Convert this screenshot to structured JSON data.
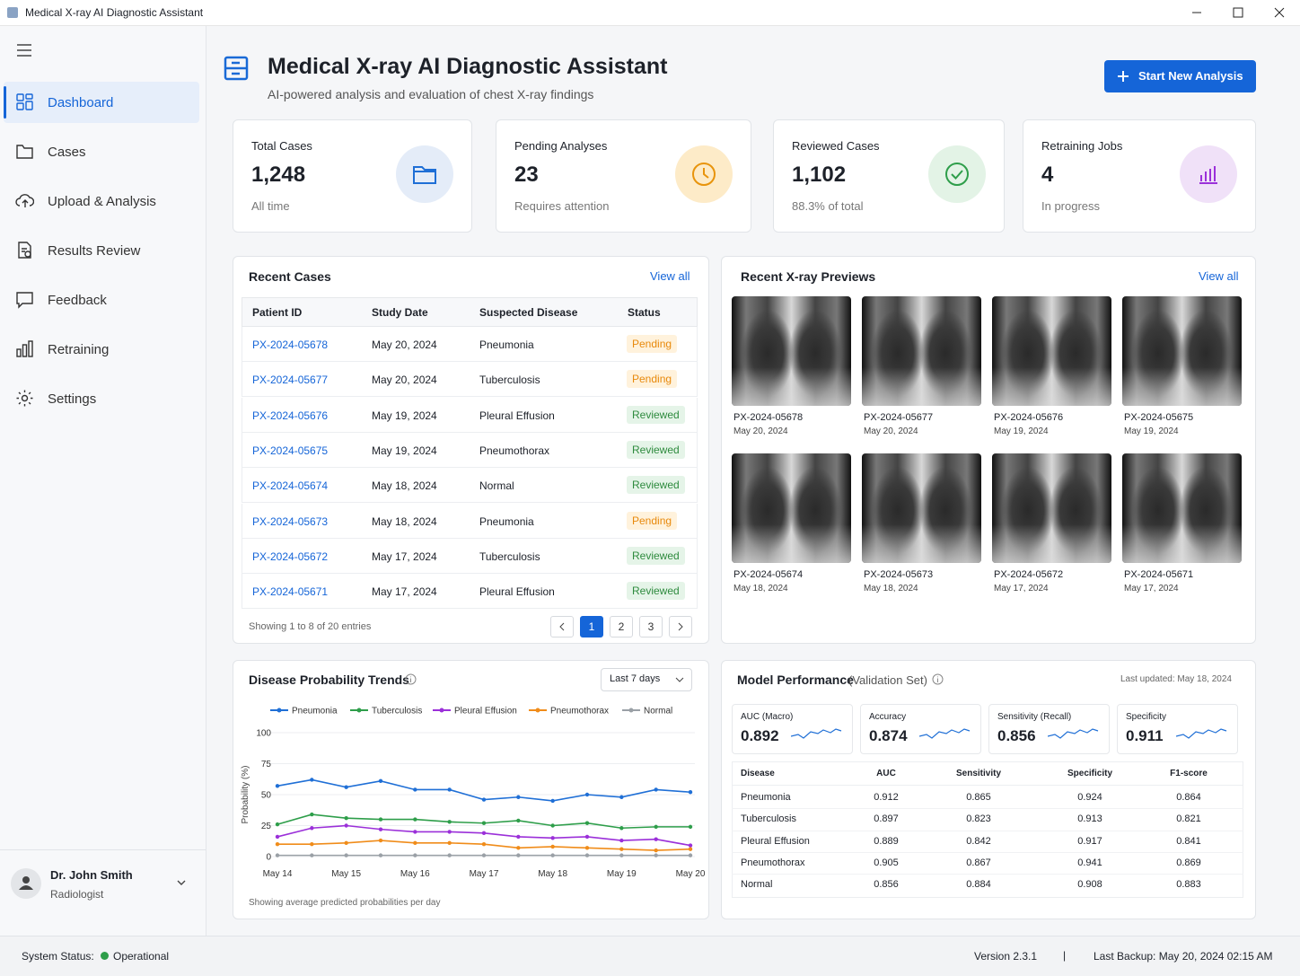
{
  "window": {
    "title": "Medical X-ray AI Diagnostic Assistant"
  },
  "nav": [
    "Dashboard",
    "Cases",
    "Upload & Analysis",
    "Results Review",
    "Feedback",
    "Retraining",
    "Settings"
  ],
  "user": {
    "name": "Dr. John Smith",
    "role": "Radiologist"
  },
  "header": {
    "title": "Medical X-ray AI Diagnostic Assistant",
    "subtitle": "AI-powered analysis and evaluation of chest X-ray findings",
    "button": "Start New Analysis"
  },
  "stats": [
    {
      "label": "Total Cases",
      "value": "1,248",
      "note": "All time"
    },
    {
      "label": "Pending Analyses",
      "value": "23",
      "note": "Requires attention"
    },
    {
      "label": "Reviewed Cases",
      "value": "1,102",
      "note": "88.3% of total"
    },
    {
      "label": "Retraining Jobs",
      "value": "4",
      "note": "In progress"
    }
  ],
  "recent_cases": {
    "title": "Recent Cases",
    "view_all": "View all",
    "columns": [
      "Patient ID",
      "Study Date",
      "Suspected Disease",
      "Status"
    ],
    "rows": [
      [
        "PX-2024-05678",
        "May 20, 2024",
        "Pneumonia",
        "Pending"
      ],
      [
        "PX-2024-05677",
        "May 20, 2024",
        "Tuberculosis",
        "Pending"
      ],
      [
        "PX-2024-05676",
        "May 19, 2024",
        "Pleural Effusion",
        "Reviewed"
      ],
      [
        "PX-2024-05675",
        "May 19, 2024",
        "Pneumothorax",
        "Reviewed"
      ],
      [
        "PX-2024-05674",
        "May 18, 2024",
        "Normal",
        "Reviewed"
      ],
      [
        "PX-2024-05673",
        "May 18, 2024",
        "Pneumonia",
        "Pending"
      ],
      [
        "PX-2024-05672",
        "May 17, 2024",
        "Tuberculosis",
        "Reviewed"
      ],
      [
        "PX-2024-05671",
        "May 17, 2024",
        "Pleural Effusion",
        "Reviewed"
      ]
    ],
    "footer": "Showing 1 to 8 of 20 entries",
    "pages": [
      "1",
      "2",
      "3"
    ]
  },
  "previews": {
    "title": "Recent X-ray Previews",
    "view_all": "View all",
    "items": [
      {
        "id": "PX-2024-05678",
        "date": "May 20, 2024"
      },
      {
        "id": "PX-2024-05677",
        "date": "May 20, 2024"
      },
      {
        "id": "PX-2024-05676",
        "date": "May 19, 2024"
      },
      {
        "id": "PX-2024-05675",
        "date": "May 19, 2024"
      },
      {
        "id": "PX-2024-05674",
        "date": "May 18, 2024"
      },
      {
        "id": "PX-2024-05673",
        "date": "May 18, 2024"
      },
      {
        "id": "PX-2024-05672",
        "date": "May 17, 2024"
      },
      {
        "id": "PX-2024-05671",
        "date": "May 17, 2024"
      }
    ]
  },
  "trends": {
    "title": "Disease Probability Trends",
    "range": "Last 7 days",
    "footnote": "Showing average predicted probabilities per day",
    "chart_data": {
      "type": "line",
      "categories": [
        "May 14",
        null,
        "May 15",
        null,
        "May 16",
        null,
        "May 17",
        null,
        "May 18",
        null,
        "May 19",
        null,
        "May 20"
      ],
      "ylabel": "Probability (%)",
      "ylim": [
        0,
        100
      ],
      "yticks": [
        0,
        25,
        50,
        75,
        100
      ],
      "grid": true,
      "series": [
        {
          "name": "Pneumonia",
          "color": "#1f6fd6",
          "values": [
            57,
            62,
            56,
            61,
            54,
            54,
            46,
            48,
            45,
            50,
            48,
            54,
            52
          ]
        },
        {
          "name": "Tuberculosis",
          "color": "#2e9e4a",
          "values": [
            26,
            34,
            31,
            30,
            30,
            28,
            27,
            29,
            25,
            27,
            23,
            24,
            24
          ]
        },
        {
          "name": "Pleural Effusion",
          "color": "#9b30d9",
          "values": [
            16,
            23,
            25,
            22,
            20,
            20,
            19,
            16,
            15,
            16,
            13,
            14,
            9
          ]
        },
        {
          "name": "Pneumothorax",
          "color": "#f08c1a",
          "values": [
            10,
            10,
            11,
            13,
            11,
            11,
            10,
            7,
            8,
            7,
            6,
            5,
            6
          ]
        },
        {
          "name": "Normal",
          "color": "#9aa0a6",
          "values": [
            1,
            1,
            1,
            1,
            1,
            1,
            1,
            1,
            1,
            1,
            1,
            1,
            1
          ]
        }
      ]
    }
  },
  "performance": {
    "title": "Model Performance",
    "subtitle": "(Validation Set)",
    "updated": "Last updated: May 18, 2024",
    "metrics": [
      {
        "label": "AUC (Macro)",
        "value": "0.892"
      },
      {
        "label": "Accuracy",
        "value": "0.874"
      },
      {
        "label": "Sensitivity (Recall)",
        "value": "0.856"
      },
      {
        "label": "Specificity",
        "value": "0.911"
      }
    ],
    "columns": [
      "Disease",
      "AUC",
      "Sensitivity",
      "Specificity",
      "F1-score"
    ],
    "rows": [
      [
        "Pneumonia",
        "0.912",
        "0.865",
        "0.924",
        "0.864"
      ],
      [
        "Tuberculosis",
        "0.897",
        "0.823",
        "0.913",
        "0.821"
      ],
      [
        "Pleural Effusion",
        "0.889",
        "0.842",
        "0.917",
        "0.841"
      ],
      [
        "Pneumothorax",
        "0.905",
        "0.867",
        "0.941",
        "0.869"
      ],
      [
        "Normal",
        "0.856",
        "0.884",
        "0.908",
        "0.883"
      ]
    ]
  },
  "status": {
    "label": "System Status:",
    "value": "Operational",
    "version": "Version 2.3.1",
    "separator": "|",
    "backup": "Last Backup: May 20, 2024 02:15 AM"
  }
}
